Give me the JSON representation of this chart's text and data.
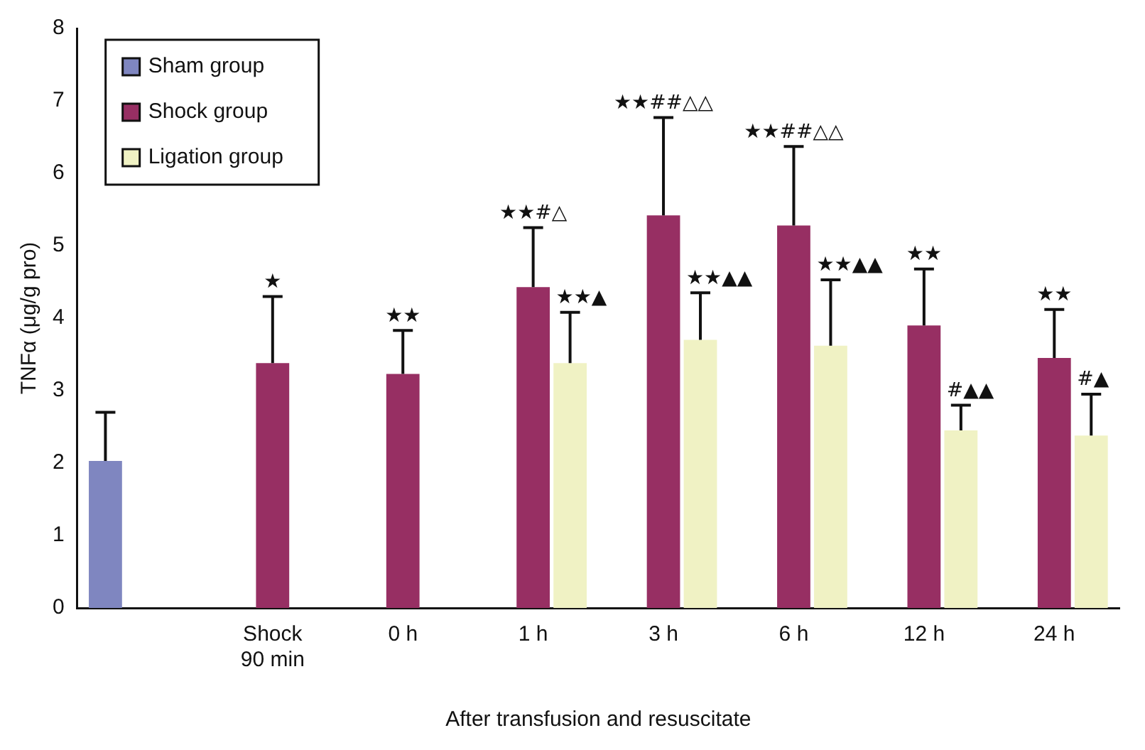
{
  "chart_data": {
    "type": "bar",
    "xlabel": "After transfusion and resuscitate",
    "ylabel": "TNFα (μg/g pro)",
    "categories": [
      null,
      "Shock\n90 min",
      "0 h",
      "1 h",
      "3 h",
      "6 h",
      "12 h",
      "24 h"
    ],
    "series": [
      {
        "name": "Sham group",
        "color": "#7f86c0",
        "values": [
          2.03,
          null,
          null,
          null,
          null,
          null,
          null,
          null
        ],
        "errors": [
          [
            2.03,
            2.7
          ],
          null,
          null,
          null,
          null,
          null,
          null,
          null
        ]
      },
      {
        "name": "Shock group",
        "color": "#972f63",
        "values": [
          null,
          3.38,
          3.23,
          4.43,
          5.42,
          5.28,
          3.9,
          3.45
        ],
        "errors": [
          null,
          [
            3.38,
            4.3
          ],
          [
            3.23,
            3.83
          ],
          [
            4.43,
            5.25
          ],
          [
            5.42,
            6.77
          ],
          [
            5.28,
            6.37
          ],
          [
            3.9,
            4.68
          ],
          [
            3.45,
            4.12
          ]
        ]
      },
      {
        "name": "Ligation group",
        "color": "#f0f2c4",
        "values": [
          null,
          null,
          null,
          3.38,
          3.7,
          3.62,
          2.45,
          2.38
        ],
        "errors": [
          null,
          null,
          null,
          [
            3.38,
            4.08
          ],
          [
            3.7,
            4.35
          ],
          [
            3.62,
            4.53
          ],
          [
            2.45,
            2.8
          ],
          [
            2.38,
            2.95
          ]
        ]
      }
    ],
    "ylim": [
      0,
      8
    ],
    "yticks": [
      0,
      1,
      2,
      3,
      4,
      5,
      6,
      7,
      8
    ],
    "grid": false,
    "legend": "top left",
    "annotations": [
      {
        "text": "★",
        "x": "Shock\n90 min",
        "y": 4.3
      },
      {
        "text": "★★",
        "x": "0 h",
        "y": 3.83
      },
      {
        "text": "★★#△",
        "x": "1 h",
        "y": 5.25
      },
      "★★▲",
      {
        "text": "★★##△△",
        "x": "3 h",
        "y": 6.77
      },
      "★★▲▲",
      {
        "text": "★★##△△",
        "x": "6 h",
        "y": 6.37
      },
      "★★▲▲",
      {
        "text": "★★",
        "x": "12 h",
        "y": 4.68
      },
      "#▲▲",
      {
        "text": "★★",
        "x": "24 h",
        "y": 4.12
      },
      "#▲"
    ]
  }
}
